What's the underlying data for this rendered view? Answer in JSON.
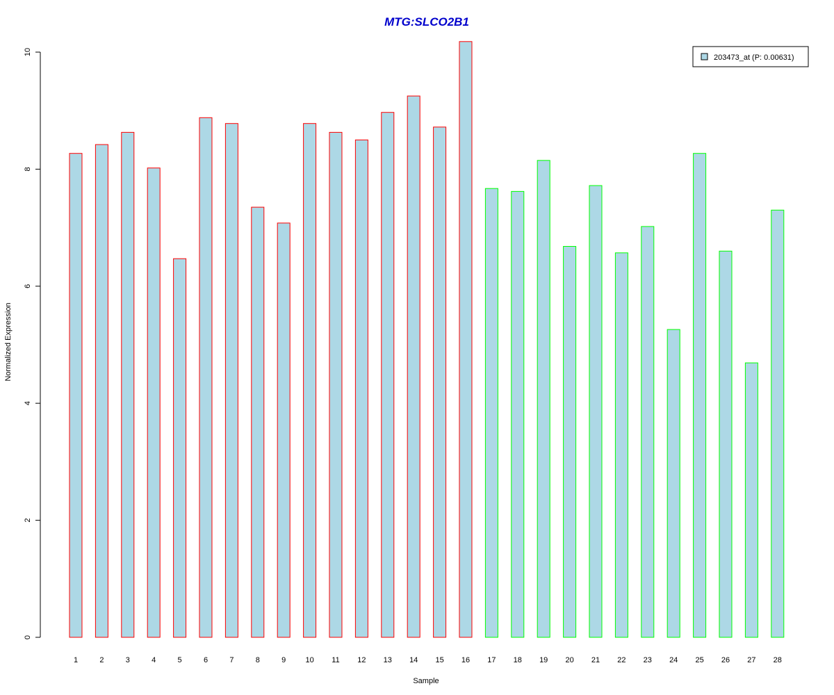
{
  "chart_data": {
    "type": "bar",
    "title": "MTG:SLCO2B1",
    "xlabel": "Sample",
    "ylabel": "Normalized Expression",
    "categories": [
      "1",
      "2",
      "3",
      "4",
      "5",
      "6",
      "7",
      "8",
      "9",
      "10",
      "11",
      "12",
      "13",
      "14",
      "15",
      "16",
      "17",
      "18",
      "19",
      "20",
      "21",
      "22",
      "23",
      "24",
      "25",
      "26",
      "27",
      "28"
    ],
    "series": [
      {
        "name": "203473_at (P: 0.00631)",
        "values": [
          8.27,
          8.42,
          8.63,
          8.02,
          6.47,
          8.88,
          8.78,
          7.35,
          7.08,
          8.78,
          8.63,
          8.5,
          8.97,
          9.25,
          8.72,
          10.18,
          7.67,
          7.62,
          8.15,
          6.68,
          7.72,
          6.57,
          7.02,
          5.26,
          8.27,
          6.6,
          4.69,
          7.3
        ]
      }
    ],
    "yticks": [
      0,
      2,
      4,
      6,
      8,
      10
    ],
    "ylim": [
      0,
      10.2
    ],
    "grid": false,
    "legend_position": "top-right",
    "colors": {
      "title": "#0000cc",
      "bar_fill": "#add8e6",
      "group1_border": "#ff0000",
      "group2_border": "#00ff00",
      "axis": "#000000"
    },
    "border_groups": [
      1,
      1,
      1,
      1,
      1,
      1,
      1,
      1,
      1,
      1,
      1,
      1,
      1,
      1,
      1,
      1,
      2,
      2,
      2,
      2,
      2,
      2,
      2,
      2,
      2,
      2,
      2,
      2
    ]
  }
}
